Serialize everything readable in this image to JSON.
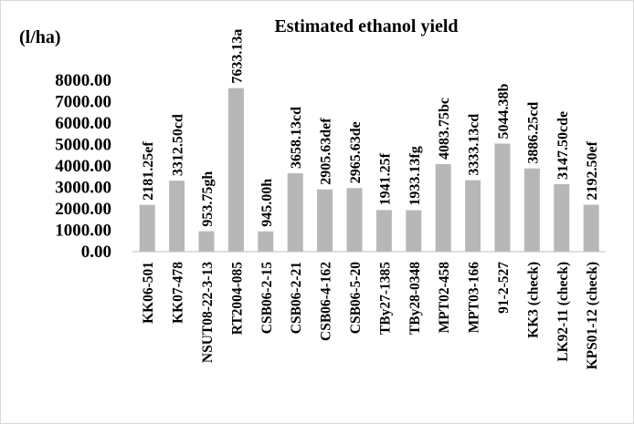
{
  "chart_data": {
    "type": "bar",
    "title": "Estimated ethanol yield",
    "ylabel": "(l/ha)",
    "xlabel": "",
    "ylim": [
      0,
      8000
    ],
    "yticks": [
      "8000.00",
      "7000.00",
      "6000.00",
      "5000.00",
      "4000.00",
      "3000.00",
      "2000.00",
      "1000.00",
      "0.00"
    ],
    "ytick_values": [
      8000,
      7000,
      6000,
      5000,
      4000,
      3000,
      2000,
      1000,
      0
    ],
    "categories": [
      "KK06-501",
      "KK07-478",
      "NSUT08-22-3-13",
      "RT2004-085",
      "CSB06-2-15",
      "CSB06-2-21",
      "CSB06-4-162",
      "CSB06-5-20",
      "TBy27-1385",
      "TBy28-0348",
      "MPT02-458",
      "MPT03-166",
      "91-2-527",
      "KK3 (check)",
      "LK92-11 (check)",
      "KPS01-12 (check)"
    ],
    "values": [
      2181.25,
      3312.5,
      953.75,
      7633.13,
      945.0,
      3658.13,
      2905.63,
      2965.63,
      1941.25,
      1933.13,
      4083.75,
      3333.13,
      5044.38,
      3886.25,
      3147.5,
      2192.5
    ],
    "data_labels": [
      "2181.25ef",
      "3312.50cd",
      "953.75gh",
      "7633.13a",
      "945.00h",
      "3658.13cd",
      "2905.63def",
      "2965.63de",
      "1941.25f",
      "1933.13fg",
      "4083.75bc",
      "3333.13cd",
      "5044.38b",
      "3886.25cd",
      "3147.50cde",
      "2192.50ef"
    ],
    "bar_color": "#b7b7b7",
    "grid": false,
    "legend": "none"
  }
}
